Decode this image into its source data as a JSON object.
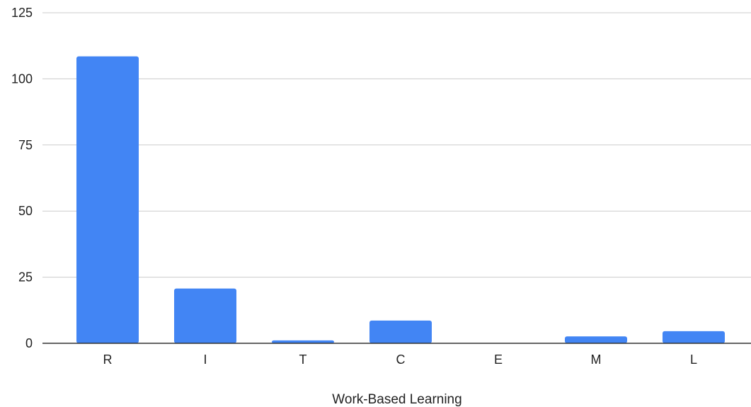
{
  "chart_data": {
    "type": "bar",
    "categories": [
      "R",
      "I",
      "T",
      "C",
      "E",
      "M",
      "L"
    ],
    "values": [
      108.5,
      20.7,
      1.1,
      8.6,
      0,
      2.6,
      4.6
    ],
    "title": "",
    "xlabel": "Work-Based Learning",
    "ylabel": "",
    "ylim": [
      0,
      125
    ],
    "yticks": [
      0,
      25,
      50,
      75,
      100,
      125
    ],
    "grid": true,
    "bar_color": "#4285f4",
    "gridline_color": "#cccccc",
    "axis_color": "#333333"
  }
}
